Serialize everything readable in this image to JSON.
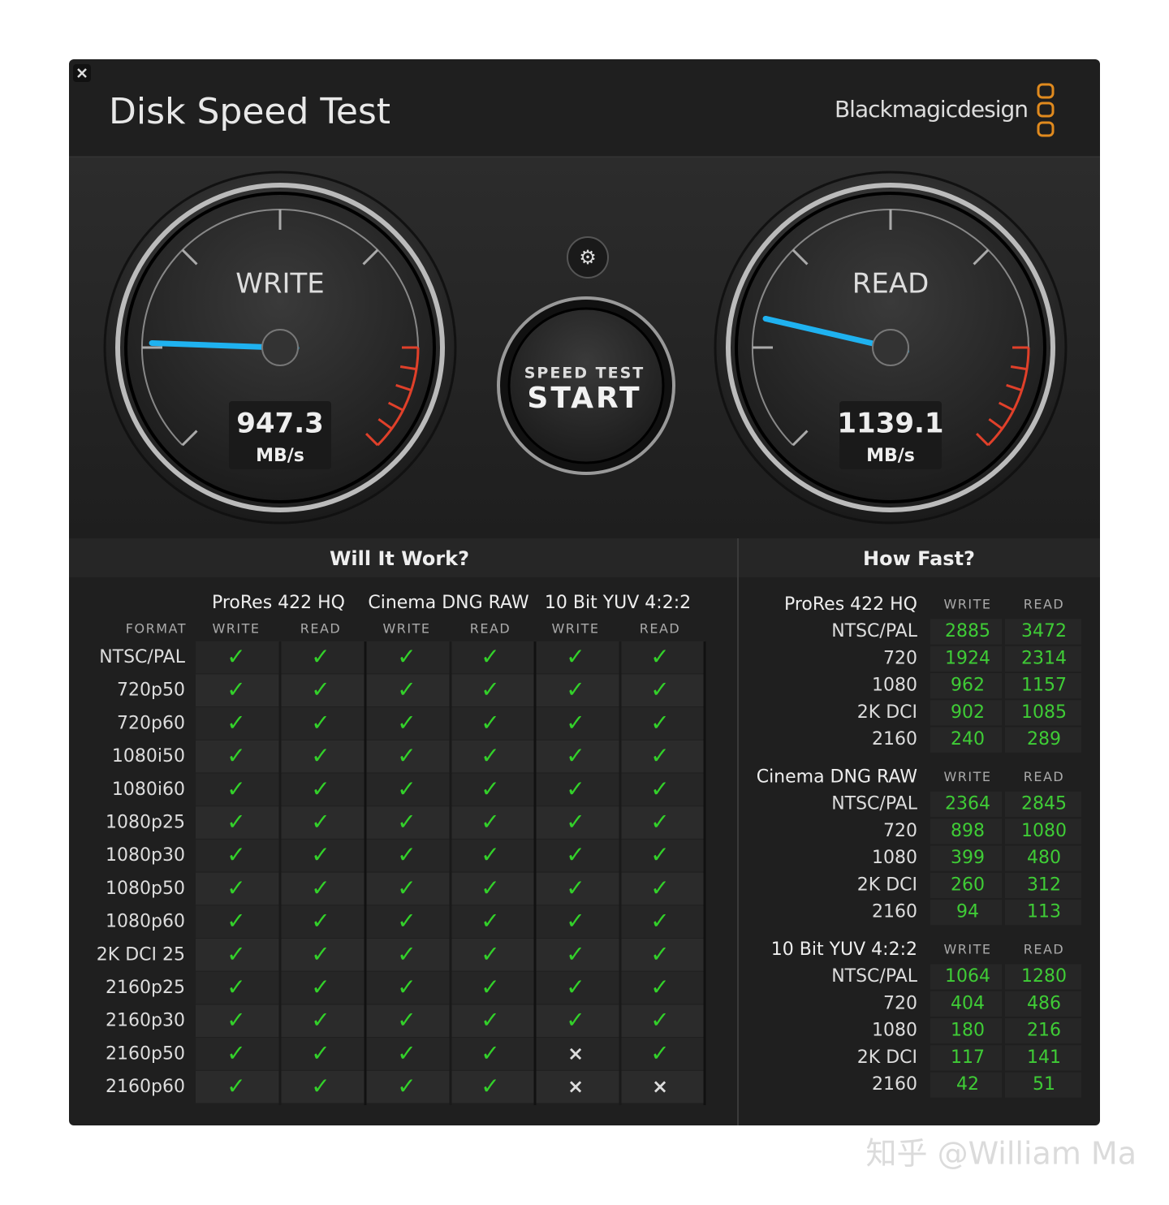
{
  "window": {
    "title": "Disk Speed Test",
    "brand": "Blackmagicdesign"
  },
  "gauges": [
    {
      "label": "WRITE",
      "value": 947.3,
      "unit": "MB/s"
    },
    {
      "label": "READ",
      "value": 1139.1,
      "unit": "MB/s"
    }
  ],
  "start_button": {
    "caption": "SPEED TEST",
    "label": "START"
  },
  "will_it_work": {
    "title": "Will It Work?",
    "format_header": "FORMAT",
    "codecs": [
      {
        "name": "ProRes 422 HQ",
        "columns": [
          "WRITE",
          "READ"
        ]
      },
      {
        "name": "Cinema DNG RAW",
        "columns": [
          "WRITE",
          "READ"
        ]
      },
      {
        "name": "10 Bit YUV 4:2:2",
        "columns": [
          "WRITE",
          "READ"
        ]
      }
    ],
    "rows": [
      {
        "format": "NTSC/PAL",
        "results": [
          "✓",
          "✓",
          "✓",
          "✓",
          "✓",
          "✓"
        ]
      },
      {
        "format": "720p50",
        "results": [
          "✓",
          "✓",
          "✓",
          "✓",
          "✓",
          "✓"
        ]
      },
      {
        "format": "720p60",
        "results": [
          "✓",
          "✓",
          "✓",
          "✓",
          "✓",
          "✓"
        ]
      },
      {
        "format": "1080i50",
        "results": [
          "✓",
          "✓",
          "✓",
          "✓",
          "✓",
          "✓"
        ]
      },
      {
        "format": "1080i60",
        "results": [
          "✓",
          "✓",
          "✓",
          "✓",
          "✓",
          "✓"
        ]
      },
      {
        "format": "1080p25",
        "results": [
          "✓",
          "✓",
          "✓",
          "✓",
          "✓",
          "✓"
        ]
      },
      {
        "format": "1080p30",
        "results": [
          "✓",
          "✓",
          "✓",
          "✓",
          "✓",
          "✓"
        ]
      },
      {
        "format": "1080p50",
        "results": [
          "✓",
          "✓",
          "✓",
          "✓",
          "✓",
          "✓"
        ]
      },
      {
        "format": "1080p60",
        "results": [
          "✓",
          "✓",
          "✓",
          "✓",
          "✓",
          "✓"
        ]
      },
      {
        "format": "2K DCI 25",
        "results": [
          "✓",
          "✓",
          "✓",
          "✓",
          "✓",
          "✓"
        ]
      },
      {
        "format": "2160p25",
        "results": [
          "✓",
          "✓",
          "✓",
          "✓",
          "✓",
          "✓"
        ]
      },
      {
        "format": "2160p30",
        "results": [
          "✓",
          "✓",
          "✓",
          "✓",
          "✓",
          "✓"
        ]
      },
      {
        "format": "2160p50",
        "results": [
          "✓",
          "✓",
          "✓",
          "✓",
          "×",
          "✓"
        ]
      },
      {
        "format": "2160p60",
        "results": [
          "✓",
          "✓",
          "✓",
          "✓",
          "×",
          "×"
        ]
      }
    ]
  },
  "how_fast": {
    "title": "How Fast?",
    "groups": [
      {
        "codec": "ProRes 422 HQ",
        "columns": [
          "WRITE",
          "READ"
        ],
        "rows": [
          {
            "format": "NTSC/PAL",
            "write": 2885,
            "read": 3472
          },
          {
            "format": "720",
            "write": 1924,
            "read": 2314
          },
          {
            "format": "1080",
            "write": 962,
            "read": 1157
          },
          {
            "format": "2K DCI",
            "write": 902,
            "read": 1085
          },
          {
            "format": "2160",
            "write": 240,
            "read": 289
          }
        ]
      },
      {
        "codec": "Cinema DNG RAW",
        "columns": [
          "WRITE",
          "READ"
        ],
        "rows": [
          {
            "format": "NTSC/PAL",
            "write": 2364,
            "read": 2845
          },
          {
            "format": "720",
            "write": 898,
            "read": 1080
          },
          {
            "format": "1080",
            "write": 399,
            "read": 480
          },
          {
            "format": "2K DCI",
            "write": 260,
            "read": 312
          },
          {
            "format": "2160",
            "write": 94,
            "read": 113
          }
        ]
      },
      {
        "codec": "10 Bit YUV 4:2:2",
        "columns": [
          "WRITE",
          "READ"
        ],
        "rows": [
          {
            "format": "NTSC/PAL",
            "write": 1064,
            "read": 1280
          },
          {
            "format": "720",
            "write": 404,
            "read": 486
          },
          {
            "format": "1080",
            "write": 180,
            "read": 216
          },
          {
            "format": "2K DCI",
            "write": 117,
            "read": 141
          },
          {
            "format": "2160",
            "write": 42,
            "read": 51
          }
        ]
      }
    ]
  },
  "watermark": "知乎 @William Ma"
}
